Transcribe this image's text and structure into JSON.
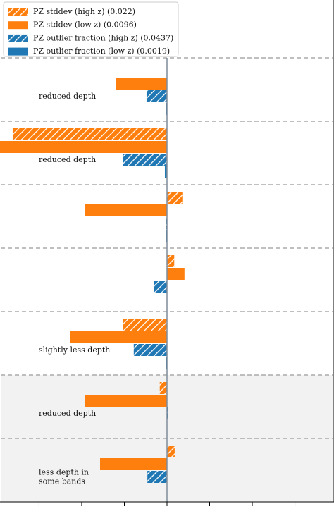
{
  "chart_data": {
    "type": "bar",
    "orientation": "horizontal",
    "categories": [
      null,
      null,
      null,
      null,
      null,
      null,
      null
    ],
    "annotations": [
      [
        "reduced depth"
      ],
      [
        "reduced depth"
      ],
      null,
      null,
      [
        "slightly less depth"
      ],
      [
        "reduced depth"
      ],
      [
        "less depth in",
        "some bands"
      ]
    ],
    "shaded": [
      false,
      false,
      false,
      false,
      false,
      true,
      true
    ],
    "series": [
      {
        "name": "PZ stddev (high z) (0.022)",
        "color": "#ff7f0e",
        "hatch": true,
        "values": [
          0,
          -0.362,
          0.036,
          0.017,
          -0.104,
          -0.017,
          0.018
        ]
      },
      {
        "name": "PZ stddev (low z) (0.0096)",
        "color": "#ff7f0e",
        "hatch": false,
        "values": [
          -0.119,
          -0.4,
          -0.193,
          0.041,
          -0.228,
          -0.193,
          -0.157
        ]
      },
      {
        "name": "PZ outlier fraction (high z) (0.0437)",
        "color": "#1f77b4",
        "hatch": true,
        "values": [
          -0.048,
          -0.104,
          -0.003,
          -0.03,
          -0.078,
          0.003,
          -0.046
        ]
      },
      {
        "name": "PZ outlier fraction (low z) (0.0019)",
        "color": "#1f77b4",
        "hatch": false,
        "values": [
          -0.002,
          -0.005,
          -0.002,
          0,
          -0.003,
          0,
          0
        ]
      }
    ],
    "xlim": [
      -0.39,
      0.39
    ],
    "xticks": [
      -0.3,
      -0.2,
      -0.1,
      0,
      0.1,
      0.2,
      0.3
    ],
    "grid": true,
    "legend": "upper left"
  }
}
